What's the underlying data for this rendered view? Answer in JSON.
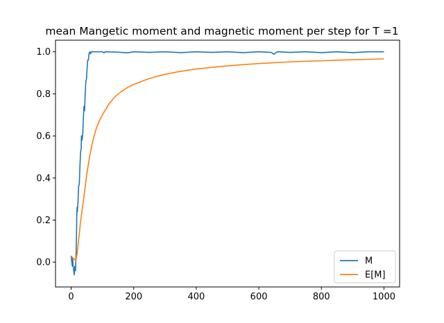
{
  "chart_data": {
    "type": "line",
    "title": "mean Mangetic moment and magnetic moment per step for T =1",
    "xlabel": "",
    "ylabel": "",
    "xlim": [
      -50,
      1050
    ],
    "ylim": [
      -0.118,
      1.055
    ],
    "x_ticks": [
      0,
      200,
      400,
      600,
      800,
      1000
    ],
    "x_tick_labels": [
      "0",
      "200",
      "400",
      "600",
      "800",
      "1000"
    ],
    "y_ticks": [
      0.0,
      0.2,
      0.4,
      0.6,
      0.8,
      1.0
    ],
    "y_tick_labels": [
      "0.0",
      "0.2",
      "0.4",
      "0.6",
      "0.8",
      "1.0"
    ],
    "grid": false,
    "legend_position": "lower-right",
    "series": [
      {
        "name": "M",
        "color": "#1f77b4",
        "points": [
          [
            0,
            0.03
          ],
          [
            2,
            0.0
          ],
          [
            4,
            -0.02
          ],
          [
            5,
            0.02
          ],
          [
            6,
            -0.01
          ],
          [
            8,
            -0.04
          ],
          [
            10,
            -0.06
          ],
          [
            12,
            -0.02
          ],
          [
            14,
            -0.04
          ],
          [
            16,
            0.05
          ],
          [
            17,
            0.12
          ],
          [
            18,
            0.22
          ],
          [
            19,
            0.26
          ],
          [
            20,
            0.24
          ],
          [
            22,
            0.29
          ],
          [
            24,
            0.36
          ],
          [
            26,
            0.37
          ],
          [
            28,
            0.45
          ],
          [
            30,
            0.52
          ],
          [
            32,
            0.54
          ],
          [
            33,
            0.6
          ],
          [
            35,
            0.58
          ],
          [
            37,
            0.61
          ],
          [
            39,
            0.68
          ],
          [
            41,
            0.74
          ],
          [
            43,
            0.72
          ],
          [
            45,
            0.8
          ],
          [
            47,
            0.86
          ],
          [
            49,
            0.87
          ],
          [
            51,
            0.92
          ],
          [
            53,
            0.96
          ],
          [
            55,
            0.96
          ],
          [
            57,
            0.99
          ],
          [
            60,
            1.0
          ],
          [
            62,
            0.99
          ],
          [
            65,
            1.0
          ],
          [
            100,
            1.0
          ],
          [
            105,
            0.995
          ],
          [
            110,
            1.0
          ],
          [
            150,
            0.998
          ],
          [
            180,
            0.995
          ],
          [
            200,
            1.0
          ],
          [
            250,
            0.997
          ],
          [
            300,
            1.0
          ],
          [
            350,
            0.996
          ],
          [
            400,
            1.0
          ],
          [
            450,
            0.997
          ],
          [
            500,
            1.0
          ],
          [
            550,
            0.996
          ],
          [
            600,
            1.0
          ],
          [
            640,
            0.997
          ],
          [
            648,
            0.988
          ],
          [
            652,
            0.993
          ],
          [
            660,
            1.0
          ],
          [
            700,
            0.997
          ],
          [
            750,
            1.0
          ],
          [
            800,
            0.996
          ],
          [
            850,
            1.0
          ],
          [
            900,
            0.996
          ],
          [
            950,
            1.0
          ],
          [
            1000,
            1.0
          ]
        ]
      },
      {
        "name": "E[M]",
        "color": "#ff7f0e",
        "points": [
          [
            0,
            0.03
          ],
          [
            5,
            0.02
          ],
          [
            10,
            0.015
          ],
          [
            15,
            0.005
          ],
          [
            20,
            0.05
          ],
          [
            25,
            0.12
          ],
          [
            30,
            0.19
          ],
          [
            40,
            0.3
          ],
          [
            50,
            0.42
          ],
          [
            60,
            0.51
          ],
          [
            70,
            0.58
          ],
          [
            80,
            0.634
          ],
          [
            90,
            0.672
          ],
          [
            100,
            0.7
          ],
          [
            120,
            0.75
          ],
          [
            140,
            0.786
          ],
          [
            160,
            0.811
          ],
          [
            180,
            0.83
          ],
          [
            200,
            0.845
          ],
          [
            250,
            0.873
          ],
          [
            300,
            0.893
          ],
          [
            350,
            0.907
          ],
          [
            400,
            0.918
          ],
          [
            450,
            0.926
          ],
          [
            500,
            0.933
          ],
          [
            550,
            0.939
          ],
          [
            600,
            0.944
          ],
          [
            650,
            0.948
          ],
          [
            700,
            0.952
          ],
          [
            750,
            0.955
          ],
          [
            800,
            0.957
          ],
          [
            850,
            0.96
          ],
          [
            900,
            0.962
          ],
          [
            950,
            0.964
          ],
          [
            1000,
            0.966
          ]
        ]
      }
    ]
  }
}
